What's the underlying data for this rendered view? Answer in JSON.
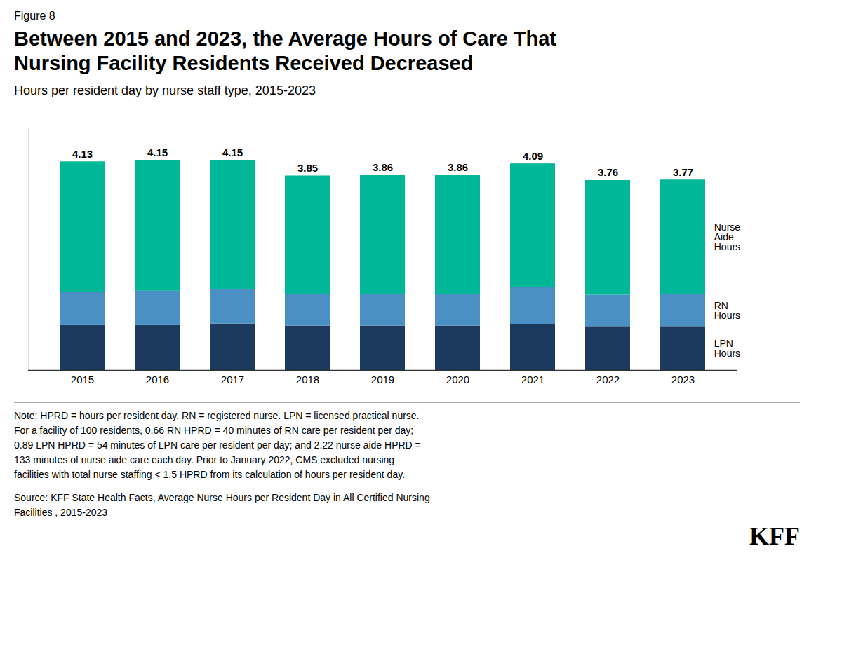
{
  "chart_data": {
    "type": "bar",
    "stacked": true,
    "figure_label": "Figure 8",
    "title": "Between 2015 and 2023, the Average Hours of Care That\nNursing Facility Residents Received Decreased",
    "subtitle": "Hours per resident day by nurse staff type, 2015-2023",
    "note": "Note: HPRD = hours per resident day. RN = registered nurse. LPN = licensed practical nurse.\nFor a facility of 100 residents, 0.66 RN HPRD = 40 minutes of RN care per resident per day;\n0.89 LPN HPRD = 54 minutes of LPN care per resident per day; and 2.22 nurse aide HPRD =\n133 minutes of nurse aide care each day. Prior to January 2022, CMS excluded nursing\nfacilities with total nurse staffing < 1.5 HPRD from its calculation of hours per resident day.",
    "source": "Source: KFF State Health Facts, Average Nurse Hours per Resident Day in All Certified Nursing\nFacilities , 2015-2023",
    "logo": "KFF",
    "categories": [
      "2015",
      "2016",
      "2017",
      "2018",
      "2019",
      "2020",
      "2021",
      "2022",
      "2023"
    ],
    "series": [
      {
        "name": "LPN\nHours",
        "color": "#1b3a5e",
        "values": [
          0.89,
          0.89,
          0.92,
          0.88,
          0.88,
          0.88,
          0.91,
          0.87,
          0.87
        ]
      },
      {
        "name": "RN\nHours",
        "color": "#4a90c4",
        "values": [
          0.66,
          0.68,
          0.69,
          0.63,
          0.63,
          0.63,
          0.73,
          0.62,
          0.63
        ]
      },
      {
        "name": "Nurse\nAide\nHours",
        "color": "#00b898",
        "values": [
          2.58,
          2.58,
          2.54,
          2.34,
          2.35,
          2.35,
          2.45,
          2.27,
          2.27
        ]
      }
    ],
    "totals": [
      4.13,
      4.15,
      4.15,
      3.85,
      3.86,
      3.86,
      4.09,
      3.76,
      3.77
    ],
    "ylim": [
      0,
      4.8
    ],
    "grid": false,
    "tick_labels": "x"
  }
}
